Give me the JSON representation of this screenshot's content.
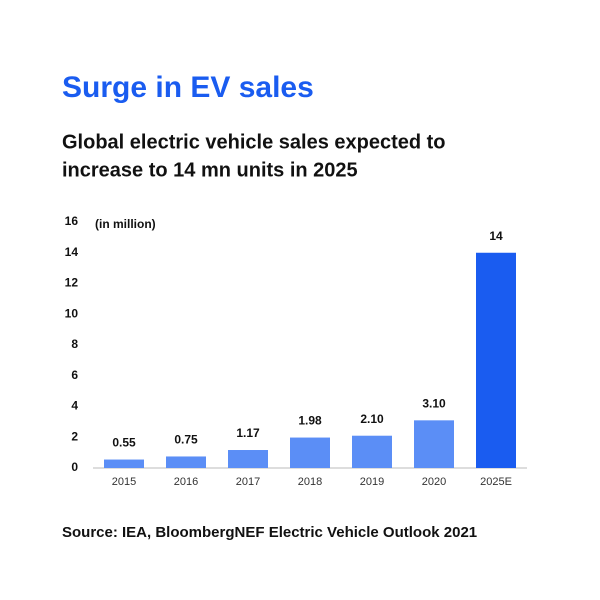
{
  "chart_data": {
    "type": "bar",
    "title": "Surge in EV sales",
    "subtitle": [
      "Global electric vehicle sales expected to",
      "increase to 14 mn units in 2025"
    ],
    "y_label": "(in million)",
    "source": "Source: IEA, BloombergNEF Electric Vehicle Outlook 2021",
    "categories": [
      "2015",
      "2016",
      "2017",
      "2018",
      "2019",
      "2020",
      "2025E"
    ],
    "values": [
      0.55,
      0.75,
      1.17,
      1.98,
      2.1,
      3.1,
      14
    ],
    "value_labels": [
      "0.55",
      "0.75",
      "1.17",
      "1.98",
      "2.10",
      "3.10",
      "14"
    ],
    "colors": [
      "#5b8ef6",
      "#5b8ef6",
      "#5b8ef6",
      "#5b8ef6",
      "#5b8ef6",
      "#5b8ef6",
      "#1a5cf0"
    ],
    "ylim": [
      0,
      16
    ],
    "yticks": [
      0,
      2,
      4,
      6,
      8,
      10,
      12,
      14,
      16
    ],
    "grid": false
  }
}
